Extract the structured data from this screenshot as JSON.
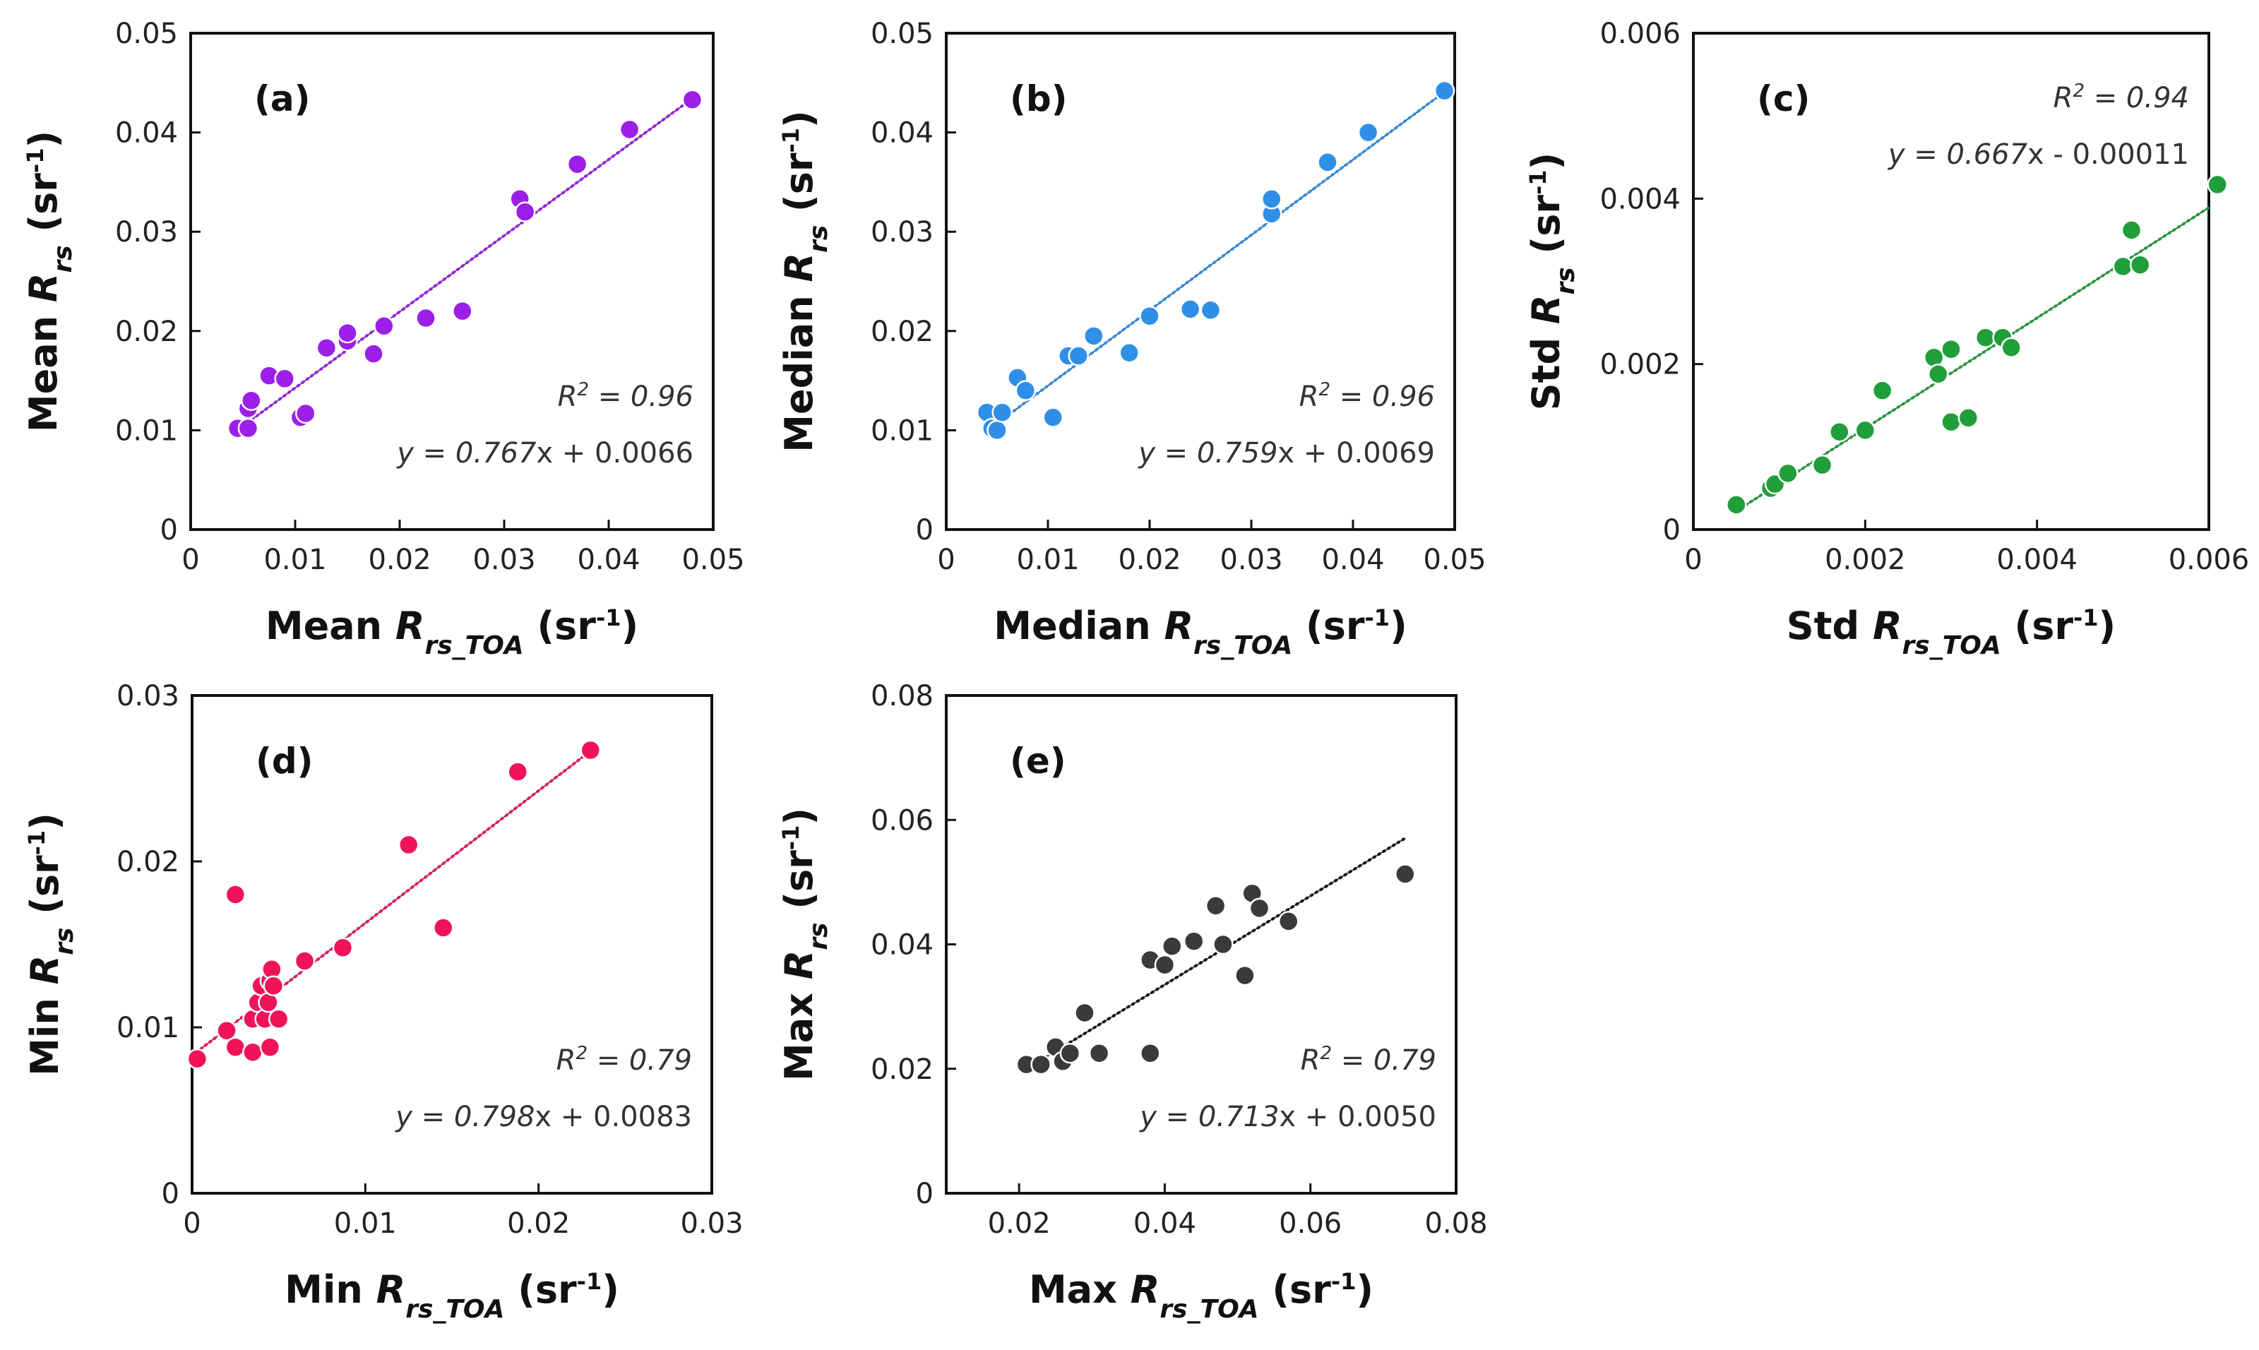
{
  "chart_data": [
    {
      "type": "scatter",
      "label": "(a)",
      "xlabel_prefix": "Mean ",
      "xlabel_sub": "rs_TOA",
      "ylabel_prefix": "Mean ",
      "ylabel_sub": "rs",
      "unit": "(sr",
      "unit_sup": "-1",
      "unit_close": ")",
      "xlim": [
        0,
        0.05
      ],
      "ylim": [
        0,
        0.05
      ],
      "xticks": [
        "0",
        "0.01",
        "0.02",
        "0.03",
        "0.04",
        "0.05"
      ],
      "yticks": [
        "0",
        "0.01",
        "0.02",
        "0.03",
        "0.04",
        "0.05"
      ],
      "r2_lead": "R",
      "r2_sup": "2",
      "r2_rest": " = 0.96",
      "eq_y": "y = ",
      "eq_slope": "0.767",
      "eq_x": "x",
      "eq_rest": " + 0.0066",
      "slope": 0.767,
      "intercept": 0.0066,
      "fit_range": [
        0.005,
        0.048
      ],
      "color": "#9b1fe8",
      "points": [
        [
          0.0045,
          0.0102
        ],
        [
          0.0055,
          0.0102
        ],
        [
          0.0055,
          0.0122
        ],
        [
          0.0058,
          0.013
        ],
        [
          0.0075,
          0.0155
        ],
        [
          0.009,
          0.0152
        ],
        [
          0.0105,
          0.0113
        ],
        [
          0.011,
          0.0117
        ],
        [
          0.013,
          0.0183
        ],
        [
          0.015,
          0.019
        ],
        [
          0.015,
          0.0198
        ],
        [
          0.0175,
          0.0177
        ],
        [
          0.0185,
          0.0205
        ],
        [
          0.0225,
          0.0213
        ],
        [
          0.026,
          0.022
        ],
        [
          0.0315,
          0.0333
        ],
        [
          0.032,
          0.032
        ],
        [
          0.037,
          0.0368
        ],
        [
          0.042,
          0.0403
        ],
        [
          0.048,
          0.0433
        ]
      ]
    },
    {
      "type": "scatter",
      "label": "(b)",
      "xlabel_prefix": "Median ",
      "xlabel_sub": "rs_TOA",
      "ylabel_prefix": "Median ",
      "ylabel_sub": "rs",
      "unit": "(sr",
      "unit_sup": "-1",
      "unit_close": ")",
      "xlim": [
        0,
        0.05
      ],
      "ylim": [
        0,
        0.05
      ],
      "xticks": [
        "0",
        "0.01",
        "0.02",
        "0.03",
        "0.04",
        "0.05"
      ],
      "yticks": [
        "0",
        "0.01",
        "0.02",
        "0.03",
        "0.04",
        "0.05"
      ],
      "r2_lead": "R",
      "r2_sup": "2",
      "r2_rest": " = 0.96",
      "eq_y": "y = ",
      "eq_slope": "0.759",
      "eq_x": "x",
      "eq_rest": " + 0.0069",
      "slope": 0.759,
      "intercept": 0.0069,
      "fit_range": [
        0.004,
        0.049
      ],
      "color": "#2f8fe8",
      "points": [
        [
          0.004,
          0.0118
        ],
        [
          0.0045,
          0.0102
        ],
        [
          0.005,
          0.01
        ],
        [
          0.0055,
          0.0118
        ],
        [
          0.007,
          0.0153
        ],
        [
          0.0078,
          0.014
        ],
        [
          0.0105,
          0.0113
        ],
        [
          0.012,
          0.0175
        ],
        [
          0.013,
          0.0175
        ],
        [
          0.0145,
          0.0195
        ],
        [
          0.018,
          0.0178
        ],
        [
          0.02,
          0.0215
        ],
        [
          0.024,
          0.0222
        ],
        [
          0.026,
          0.0221
        ],
        [
          0.032,
          0.0318
        ],
        [
          0.032,
          0.0333
        ],
        [
          0.0375,
          0.037
        ],
        [
          0.0415,
          0.04
        ],
        [
          0.049,
          0.0442
        ]
      ]
    },
    {
      "type": "scatter",
      "label": "(c)",
      "xlabel_prefix": "Std ",
      "xlabel_sub": "rs_TOA",
      "ylabel_prefix": "Std ",
      "ylabel_sub": "rs",
      "unit": "(sr",
      "unit_sup": "-1",
      "unit_close": ")",
      "xlim": [
        0,
        0.006
      ],
      "ylim": [
        0,
        0.006
      ],
      "xticks": [
        "0",
        "0.002",
        "0.004",
        "0.006"
      ],
      "yticks": [
        "0",
        "0.002",
        "0.004",
        "0.006"
      ],
      "r2_lead": "R",
      "r2_sup": "2",
      "r2_rest": " = 0.94",
      "eq_y": "y = ",
      "eq_slope": "0.667",
      "eq_x": "x",
      "eq_rest": " - 0.00011",
      "slope": 0.667,
      "intercept": -0.00011,
      "fit_range": [
        0.0005,
        0.006
      ],
      "color": "#1f9e3a",
      "points": [
        [
          0.0005,
          0.0003
        ],
        [
          0.0009,
          0.0005
        ],
        [
          0.00095,
          0.00055
        ],
        [
          0.0011,
          0.00068
        ],
        [
          0.0015,
          0.00078
        ],
        [
          0.0017,
          0.00118
        ],
        [
          0.002,
          0.0012
        ],
        [
          0.0022,
          0.00168
        ],
        [
          0.0028,
          0.00208
        ],
        [
          0.00285,
          0.00188
        ],
        [
          0.003,
          0.00218
        ],
        [
          0.003,
          0.0013
        ],
        [
          0.0032,
          0.00135
        ],
        [
          0.0034,
          0.00232
        ],
        [
          0.0036,
          0.00232
        ],
        [
          0.0037,
          0.0022
        ],
        [
          0.005,
          0.00318
        ],
        [
          0.0051,
          0.00362
        ],
        [
          0.0052,
          0.0032
        ],
        [
          0.0061,
          0.00417
        ]
      ]
    },
    {
      "type": "scatter",
      "label": "(d)",
      "xlabel_prefix": "Min ",
      "xlabel_sub": "rs_TOA",
      "ylabel_prefix": "Min ",
      "ylabel_sub": "rs",
      "unit": "(sr",
      "unit_sup": "-1",
      "unit_close": ")",
      "xlim": [
        0,
        0.03
      ],
      "ylim": [
        0,
        0.03
      ],
      "xticks": [
        "0",
        "0.01",
        "0.02",
        "0.03"
      ],
      "yticks": [
        "0",
        "0.01",
        "0.02",
        "0.03"
      ],
      "r2_lead": "R",
      "r2_sup": "2",
      "r2_rest": " = 0.79",
      "eq_y": "y = ",
      "eq_slope": "0.798",
      "eq_x": "x",
      "eq_rest": " + 0.0083",
      "slope": 0.798,
      "intercept": 0.0083,
      "fit_range": [
        0.0005,
        0.0232
      ],
      "color": "#f0135a",
      "points": [
        [
          0.0003,
          0.0081
        ],
        [
          0.002,
          0.0098
        ],
        [
          0.0025,
          0.0088
        ],
        [
          0.0025,
          0.018
        ],
        [
          0.0035,
          0.0085
        ],
        [
          0.0035,
          0.0105
        ],
        [
          0.0038,
          0.0115
        ],
        [
          0.004,
          0.0125
        ],
        [
          0.0042,
          0.0105
        ],
        [
          0.0044,
          0.0115
        ],
        [
          0.0045,
          0.0128
        ],
        [
          0.0045,
          0.0088
        ],
        [
          0.0046,
          0.0135
        ],
        [
          0.0047,
          0.0125
        ],
        [
          0.005,
          0.0105
        ],
        [
          0.0065,
          0.014
        ],
        [
          0.0087,
          0.0148
        ],
        [
          0.0125,
          0.021
        ],
        [
          0.0145,
          0.016
        ],
        [
          0.0188,
          0.0254
        ],
        [
          0.023,
          0.0267
        ]
      ]
    },
    {
      "type": "scatter",
      "label": "(e)",
      "xlabel_prefix": "Max ",
      "xlabel_sub": "rs_TOA",
      "ylabel_prefix": "Max ",
      "ylabel_sub": "rs",
      "unit": "(sr",
      "unit_sup": "-1",
      "unit_close": ")",
      "xlim": [
        0.01,
        0.08
      ],
      "ylim": [
        0,
        0.08
      ],
      "xticks": [
        "0.02",
        "0.04",
        "0.06",
        "0.08"
      ],
      "yticks": [
        "0",
        "0.02",
        "0.04",
        "0.06",
        "0.08"
      ],
      "r2_lead": "R",
      "r2_sup": "2",
      "r2_rest": " = 0.79",
      "eq_y": "y = ",
      "eq_slope": "0.713",
      "eq_x": "x",
      "eq_rest": " + 0.0050",
      "slope": 0.713,
      "intercept": 0.005,
      "fit_range": [
        0.021,
        0.073
      ],
      "color": "#3a3a3a",
      "points": [
        [
          0.021,
          0.0207
        ],
        [
          0.023,
          0.0207
        ],
        [
          0.025,
          0.0235
        ],
        [
          0.026,
          0.0212
        ],
        [
          0.027,
          0.0225
        ],
        [
          0.029,
          0.029
        ],
        [
          0.031,
          0.0225
        ],
        [
          0.038,
          0.0375
        ],
        [
          0.038,
          0.0225
        ],
        [
          0.04,
          0.0367
        ],
        [
          0.041,
          0.0397
        ],
        [
          0.044,
          0.0405
        ],
        [
          0.047,
          0.0462
        ],
        [
          0.048,
          0.04
        ],
        [
          0.051,
          0.035
        ],
        [
          0.052,
          0.0482
        ],
        [
          0.053,
          0.0458
        ],
        [
          0.057,
          0.0437
        ],
        [
          0.073,
          0.0513
        ]
      ]
    }
  ]
}
